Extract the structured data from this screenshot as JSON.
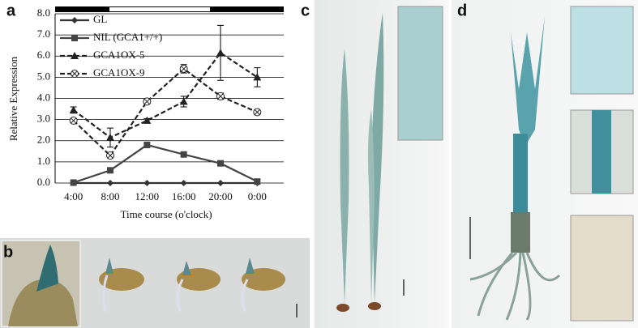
{
  "panel_labels": [
    "a",
    "b",
    "c",
    "d"
  ],
  "chart_data": {
    "type": "line",
    "ylabel": "Relative Expression",
    "xlabel": "Time course (o'clock)",
    "categories": [
      "4:00",
      "8:00",
      "12:00",
      "16:00",
      "20:00",
      "0:00"
    ],
    "ylim": [
      0,
      8
    ],
    "yticks": [
      {
        "value": 0,
        "label": "0.0"
      },
      {
        "value": 1,
        "label": "1.0"
      },
      {
        "value": 2,
        "label": "2.0"
      },
      {
        "value": 3,
        "label": "3.0"
      },
      {
        "value": 4,
        "label": "4.0"
      },
      {
        "value": 5,
        "label": "5.0"
      },
      {
        "value": 6,
        "label": "6.0"
      },
      {
        "value": 7,
        "label": "7.0"
      },
      {
        "value": 8,
        "label": "8.0"
      }
    ],
    "grid": true,
    "legend": "upper left",
    "series": [
      {
        "name": "GL",
        "color": "#333333",
        "marker": "diamond",
        "linestyle": "solid",
        "values": [
          0,
          0,
          0,
          0,
          0,
          0
        ]
      },
      {
        "name": "NIL (GCA1+/+)",
        "color": "#444444",
        "marker": "square",
        "linestyle": "solid",
        "values": [
          0.02,
          0.6,
          1.8,
          1.35,
          0.93,
          0.07
        ]
      },
      {
        "name": "GCA1OX-5",
        "color": "#222222",
        "marker": "triangle",
        "linestyle": "dashed",
        "values": [
          3.45,
          2.15,
          2.95,
          3.85,
          6.15,
          5.0
        ],
        "errors": [
          0.15,
          0.45,
          0.1,
          0.25,
          1.3,
          0.45
        ]
      },
      {
        "name": "GCA1OX-9",
        "color": "#222222",
        "marker": "circle-x",
        "linestyle": "dashed",
        "values": [
          2.95,
          1.3,
          3.85,
          5.4,
          4.1,
          3.35
        ],
        "errors": [
          0.1,
          0.1,
          0.1,
          0.2,
          0.15,
          0.1
        ]
      }
    ]
  }
}
